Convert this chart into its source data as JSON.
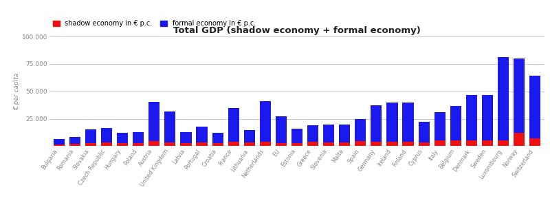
{
  "title": "Total GDP (shadow economy + formal economy)",
  "ylabel": "€ per capita",
  "legend_shadow": "shadow economy in € p.c.",
  "legend_formal": "formal economy in € p.c.",
  "shadow_color": "#ee1111",
  "formal_color": "#1a1aee",
  "background_color": "#ffffff",
  "grid_color": "#cccccc",
  "text_color": "#888888",
  "ylim": [
    0,
    100000
  ],
  "yticks": [
    0,
    25000,
    50000,
    75000,
    100000
  ],
  "ytick_labels": [
    "",
    "25.000",
    "50.000",
    "75.000",
    "100.000"
  ],
  "countries": [
    "Bulgaria",
    "Romania",
    "Slovakia",
    "Czech Republic",
    "Hungary",
    "Poland",
    "Austria",
    "United Kingdom",
    "Latvia",
    "Portugal",
    "Croatia",
    "France",
    "Lithuania",
    "Netherlands",
    "EU",
    "Estonia",
    "Greece",
    "Slovenia",
    "Malta",
    "Spain",
    "Germany",
    "Ireland",
    "Finland",
    "Cyprus",
    "Italy",
    "Belgium",
    "Denmark",
    "Sweden",
    "Luxembourg",
    "Norway",
    "Switzerland"
  ],
  "shadow": [
    1500,
    2000,
    3000,
    3200,
    2500,
    3000,
    4500,
    3500,
    2500,
    3500,
    3000,
    4000,
    3500,
    4000,
    3000,
    3000,
    4000,
    3500,
    3500,
    4500,
    4000,
    4000,
    4000,
    3500,
    5000,
    5000,
    5500,
    5500,
    5500,
    12000,
    7000
  ],
  "formal": [
    4800,
    6500,
    12500,
    13500,
    9500,
    10000,
    36000,
    28000,
    10000,
    14500,
    9000,
    31000,
    11500,
    37000,
    24000,
    13000,
    15000,
    16500,
    16000,
    20000,
    33000,
    35500,
    35500,
    19000,
    26000,
    31500,
    41000,
    41000,
    76000,
    68000,
    57000
  ]
}
